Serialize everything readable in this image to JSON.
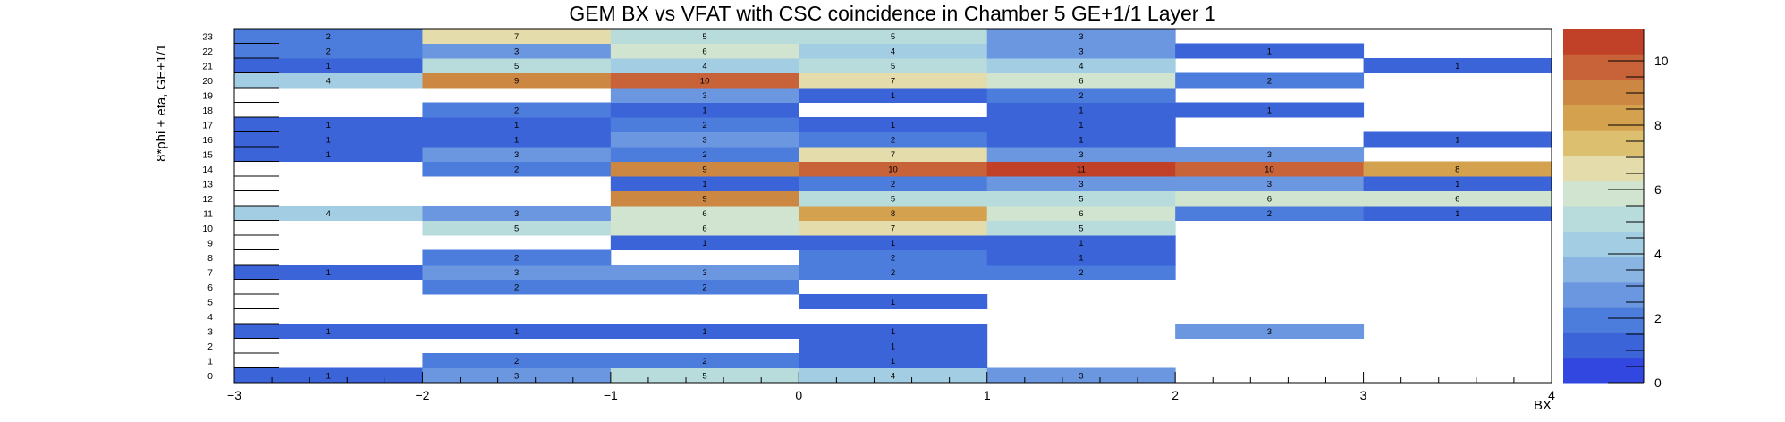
{
  "chart_data": {
    "type": "heatmap",
    "title": "GEM BX vs VFAT with CSC coincidence in Chamber 5 GE+1/1 Layer 1",
    "xlabel": "BX",
    "ylabel": "8*phi + eta, GE+1/1",
    "xlim": [
      -3,
      4
    ],
    "ylim": [
      0,
      24
    ],
    "x_ticks": [
      "−3",
      "−2",
      "−1",
      "0",
      "1",
      "2",
      "3",
      "4"
    ],
    "y_ticks": [
      "0",
      "1",
      "2",
      "3",
      "4",
      "5",
      "6",
      "7",
      "8",
      "9",
      "10",
      "11",
      "12",
      "13",
      "14",
      "15",
      "16",
      "17",
      "18",
      "19",
      "20",
      "21",
      "22",
      "23"
    ],
    "x_bins": [
      [
        -3,
        -2
      ],
      [
        -2,
        -1
      ],
      [
        -1,
        0
      ],
      [
        0,
        1
      ],
      [
        1,
        2
      ],
      [
        2,
        3
      ],
      [
        3,
        4
      ]
    ],
    "z_max": 11,
    "colorbar_ticks": [
      "0",
      "2",
      "4",
      "6",
      "8",
      "10"
    ],
    "cells": [
      {
        "y": 0,
        "values": [
          1,
          3,
          5,
          4,
          3,
          null,
          null
        ]
      },
      {
        "y": 1,
        "values": [
          null,
          2,
          2,
          1,
          null,
          null,
          null
        ]
      },
      {
        "y": 2,
        "values": [
          null,
          null,
          null,
          1,
          null,
          null,
          null
        ]
      },
      {
        "y": 3,
        "values": [
          1,
          1,
          1,
          1,
          null,
          3,
          null
        ]
      },
      {
        "y": 4,
        "values": [
          null,
          null,
          null,
          null,
          null,
          null,
          null
        ]
      },
      {
        "y": 5,
        "values": [
          null,
          null,
          null,
          1,
          null,
          null,
          null
        ]
      },
      {
        "y": 6,
        "values": [
          null,
          2,
          2,
          null,
          null,
          null,
          null
        ]
      },
      {
        "y": 7,
        "values": [
          1,
          3,
          3,
          2,
          2,
          null,
          null
        ]
      },
      {
        "y": 8,
        "values": [
          null,
          2,
          null,
          2,
          1,
          null,
          null
        ]
      },
      {
        "y": 9,
        "values": [
          null,
          null,
          1,
          1,
          1,
          null,
          null
        ]
      },
      {
        "y": 10,
        "values": [
          null,
          5,
          6,
          7,
          5,
          null,
          null
        ]
      },
      {
        "y": 11,
        "values": [
          4,
          3,
          6,
          8,
          6,
          2,
          1
        ]
      },
      {
        "y": 12,
        "values": [
          null,
          null,
          9,
          5,
          5,
          6,
          6
        ]
      },
      {
        "y": 13,
        "values": [
          null,
          null,
          1,
          2,
          3,
          3,
          1
        ]
      },
      {
        "y": 14,
        "values": [
          null,
          2,
          9,
          10,
          11,
          10,
          8
        ]
      },
      {
        "y": 15,
        "values": [
          1,
          3,
          2,
          7,
          3,
          3,
          null
        ]
      },
      {
        "y": 16,
        "values": [
          1,
          1,
          3,
          2,
          1,
          null,
          1
        ]
      },
      {
        "y": 17,
        "values": [
          1,
          1,
          2,
          1,
          1,
          null,
          null
        ]
      },
      {
        "y": 18,
        "values": [
          null,
          2,
          1,
          null,
          1,
          1,
          null
        ]
      },
      {
        "y": 19,
        "values": [
          null,
          null,
          3,
          1,
          2,
          null,
          null
        ]
      },
      {
        "y": 20,
        "values": [
          4,
          9,
          10,
          7,
          6,
          2,
          null
        ]
      },
      {
        "y": 21,
        "values": [
          1,
          5,
          4,
          5,
          4,
          null,
          1
        ]
      },
      {
        "y": 22,
        "values": [
          2,
          3,
          6,
          4,
          3,
          1,
          null
        ]
      },
      {
        "y": 23,
        "values": [
          2,
          7,
          5,
          5,
          3,
          null,
          null
        ]
      }
    ],
    "palette": [
      "#3246e0",
      "#3a64d8",
      "#4d7ddc",
      "#6b96e0",
      "#8ab4e2",
      "#a3cde2",
      "#b8dcdc",
      "#d0e4d0",
      "#e4dcaa",
      "#dcc070",
      "#d4a24e",
      "#cc8842",
      "#c86238",
      "#c04028"
    ],
    "grid": false,
    "legend": "none"
  }
}
